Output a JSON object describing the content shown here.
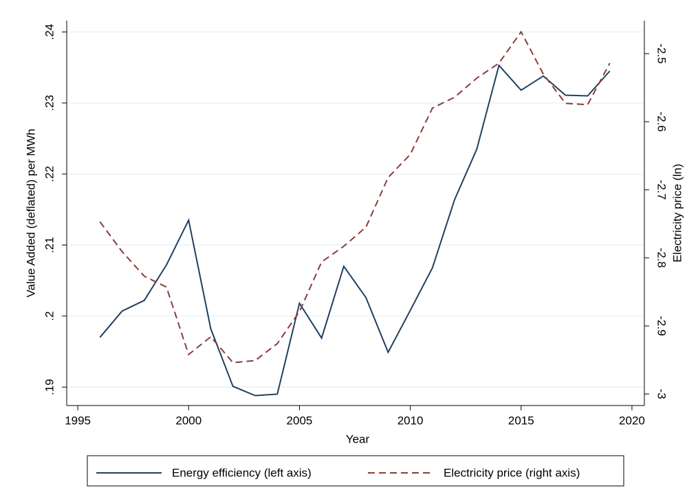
{
  "chart_data": {
    "type": "line",
    "x_label": "Year",
    "y_label": "Value Added (deflated) per MWh",
    "y2_label": "Electricity price (ln)",
    "x": [
      1996,
      1997,
      1998,
      1999,
      2000,
      2001,
      2002,
      2003,
      2004,
      2005,
      2006,
      2007,
      2008,
      2009,
      2010,
      2011,
      2012,
      2013,
      2014,
      2015,
      2016,
      2017,
      2018,
      2019
    ],
    "series": [
      {
        "name": "Energy efficiency (left axis)",
        "color": "#1f3f5f",
        "dash": false,
        "values": [
          0.197,
          0.2007,
          0.2022,
          0.2072,
          0.2135,
          0.1982,
          0.1901,
          0.1888,
          0.189,
          0.2018,
          0.1969,
          0.207,
          0.2026,
          0.1949,
          0.2008,
          0.2068,
          0.2164,
          0.2235,
          0.2353,
          0.2318,
          0.2338,
          0.2311,
          0.231,
          0.2345
        ]
      },
      {
        "name": "Electricity price (right axis)",
        "color": "#8b3a3a",
        "dash": true,
        "axis": "y2",
        "values": [
          -2.747,
          -2.791,
          -2.827,
          -2.843,
          -2.942,
          -2.916,
          -2.954,
          -2.951,
          -2.926,
          -2.879,
          -2.806,
          -2.783,
          -2.755,
          -2.682,
          -2.648,
          -2.58,
          -2.564,
          -2.536,
          -2.514,
          -2.468,
          -2.53,
          -2.573,
          -2.575,
          -2.514
        ]
      }
    ],
    "xlim": [
      1994.5,
      2020.56
    ],
    "xticks": [
      1995,
      2000,
      2005,
      2010,
      2015,
      2020
    ],
    "ylim": [
      0.1874,
      0.2416
    ],
    "yticks": [
      {
        "value": 0.19,
        "label": ".19"
      },
      {
        "value": 0.2,
        "label": ".2"
      },
      {
        "value": 0.21,
        "label": ".21"
      },
      {
        "value": 0.22,
        "label": ".22"
      },
      {
        "value": 0.23,
        "label": ".23"
      },
      {
        "value": 0.24,
        "label": ".24"
      }
    ],
    "y2lim": [
      -3.017,
      -2.4515
    ],
    "y2ticks": [
      -3,
      -2.9,
      -2.8,
      -2.7,
      -2.6,
      -2.5
    ],
    "grid": true,
    "legend": "bottom"
  }
}
